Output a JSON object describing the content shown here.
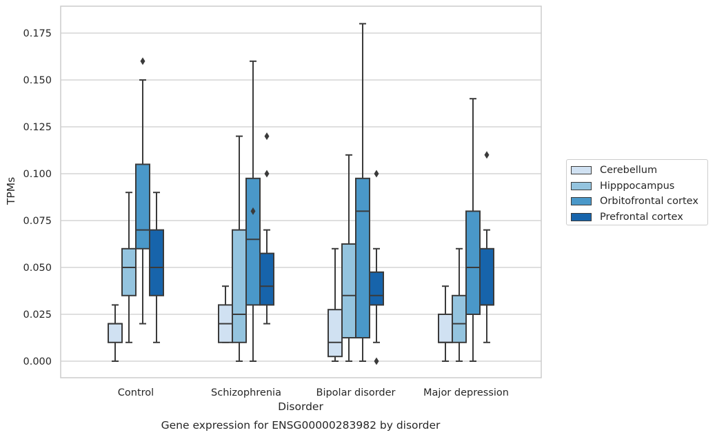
{
  "chart_data": {
    "type": "box",
    "title": "Gene expression for ENSG00000283982 by disorder",
    "xlabel": "Disorder",
    "ylabel": "TPMs",
    "ylim": [
      -0.009,
      0.189
    ],
    "yticks": [
      "0.000",
      "0.025",
      "0.050",
      "0.075",
      "0.100",
      "0.125",
      "0.150",
      "0.175"
    ],
    "grid": "horizontal",
    "legend_position": "right",
    "categories": [
      "Control",
      "Schizophrenia",
      "Bipolar disorder",
      "Major depression"
    ],
    "series": [
      {
        "name": "Cerebellum",
        "color": "#d0e1f2",
        "boxes": [
          {
            "whislo": 0.0,
            "q1": 0.01,
            "med": 0.02,
            "q3": 0.02,
            "whishi": 0.03,
            "fliers": []
          },
          {
            "whislo": 0.01,
            "q1": 0.01,
            "med": 0.02,
            "q3": 0.03,
            "whishi": 0.04,
            "fliers": []
          },
          {
            "whislo": 0.0,
            "q1": 0.0025,
            "med": 0.01,
            "q3": 0.0275,
            "whishi": 0.06,
            "fliers": []
          },
          {
            "whislo": 0.0,
            "q1": 0.01,
            "med": 0.01,
            "q3": 0.025,
            "whishi": 0.04,
            "fliers": []
          }
        ]
      },
      {
        "name": "Hipppocampus",
        "color": "#94c4df",
        "boxes": [
          {
            "whislo": 0.01,
            "q1": 0.035,
            "med": 0.05,
            "q3": 0.06,
            "whishi": 0.09,
            "fliers": []
          },
          {
            "whislo": 0.0,
            "q1": 0.01,
            "med": 0.025,
            "q3": 0.07,
            "whishi": 0.12,
            "fliers": []
          },
          {
            "whislo": 0.0,
            "q1": 0.0125,
            "med": 0.035,
            "q3": 0.0625,
            "whishi": 0.11,
            "fliers": []
          },
          {
            "whislo": 0.0,
            "q1": 0.01,
            "med": 0.02,
            "q3": 0.035,
            "whishi": 0.06,
            "fliers": []
          }
        ]
      },
      {
        "name": "Orbitofrontal cortex",
        "color": "#4a98c9",
        "boxes": [
          {
            "whislo": 0.02,
            "q1": 0.06,
            "med": 0.07,
            "q3": 0.105,
            "whishi": 0.15,
            "fliers": [
              0.16
            ]
          },
          {
            "whislo": 0.0,
            "q1": 0.03,
            "med": 0.065,
            "q3": 0.0975,
            "whishi": 0.16,
            "fliers": [
              0.08
            ]
          },
          {
            "whislo": 0.0,
            "q1": 0.0125,
            "med": 0.08,
            "q3": 0.0975,
            "whishi": 0.18,
            "fliers": []
          },
          {
            "whislo": 0.0,
            "q1": 0.025,
            "med": 0.05,
            "q3": 0.08,
            "whishi": 0.14,
            "fliers": []
          }
        ]
      },
      {
        "name": "Prefrontal cortex",
        "color": "#1764ab",
        "boxes": [
          {
            "whislo": 0.01,
            "q1": 0.035,
            "med": 0.05,
            "q3": 0.07,
            "whishi": 0.09,
            "fliers": []
          },
          {
            "whislo": 0.02,
            "q1": 0.03,
            "med": 0.04,
            "q3": 0.0575,
            "whishi": 0.07,
            "fliers": [
              0.1,
              0.12
            ]
          },
          {
            "whislo": 0.01,
            "q1": 0.03,
            "med": 0.035,
            "q3": 0.0475,
            "whishi": 0.06,
            "fliers": [
              0.0,
              0.1
            ]
          },
          {
            "whislo": 0.01,
            "q1": 0.03,
            "med": 0.03,
            "q3": 0.06,
            "whishi": 0.07,
            "fliers": [
              0.11
            ]
          }
        ]
      }
    ]
  },
  "flier_offsets": {
    "1": [
      0,
      -4
    ],
    "2": [
      0,
      4
    ]
  }
}
